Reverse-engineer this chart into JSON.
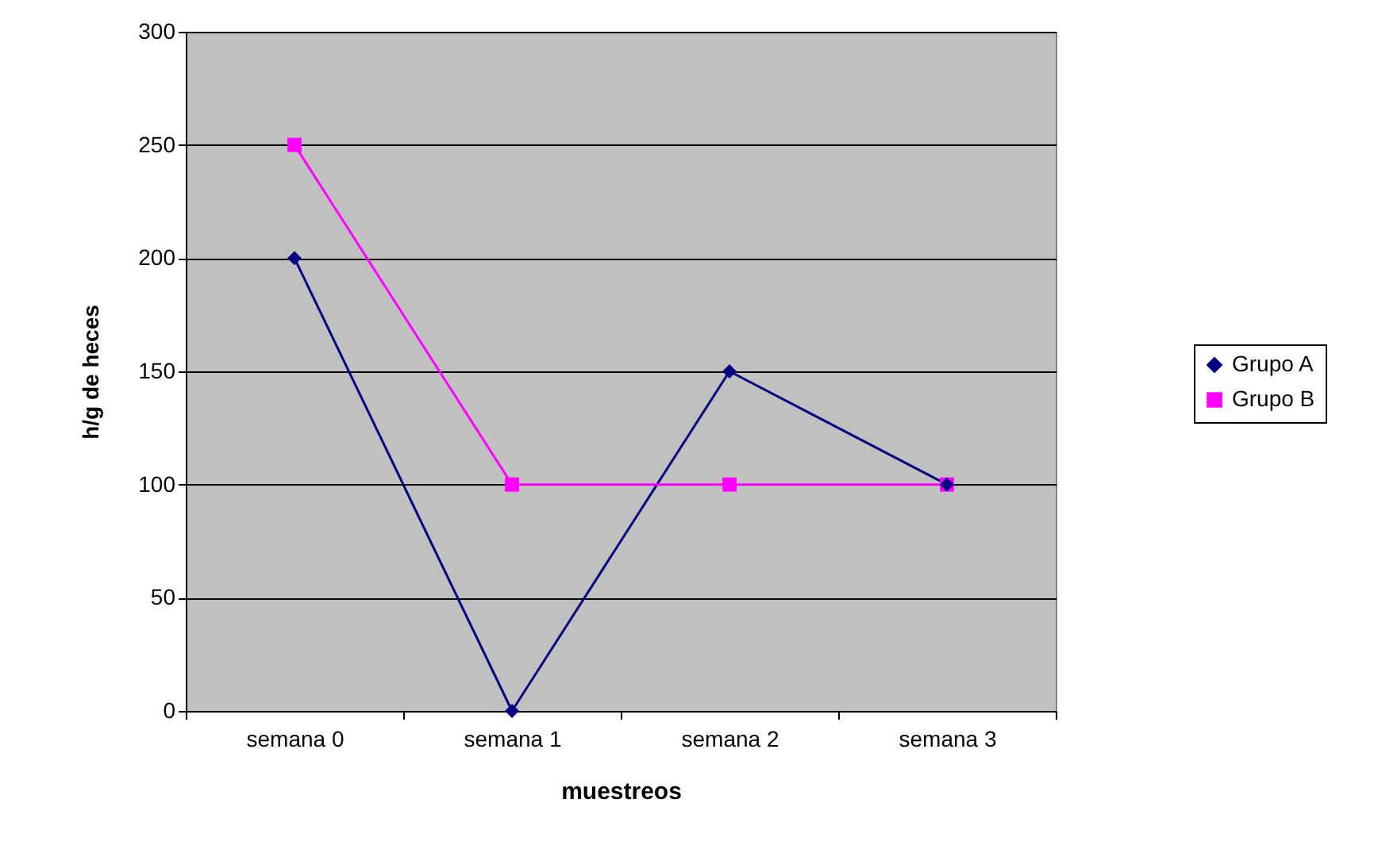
{
  "chart_data": {
    "type": "line",
    "xlabel": "muestreos",
    "ylabel": "h/g de heces",
    "categories": [
      "semana 0",
      "semana 1",
      "semana 2",
      "semana 3"
    ],
    "series": [
      {
        "name": "Grupo A",
        "color": "#000080",
        "marker": "diamond",
        "values": [
          200,
          0,
          150,
          100
        ]
      },
      {
        "name": "Grupo B",
        "color": "#ff00ff",
        "marker": "square",
        "values": [
          250,
          100,
          100,
          100
        ]
      }
    ],
    "ylim": [
      0,
      300
    ],
    "yticks": [
      0,
      50,
      100,
      150,
      200,
      250,
      300
    ],
    "grid": "y",
    "legend": "right",
    "line_style": "solid"
  }
}
